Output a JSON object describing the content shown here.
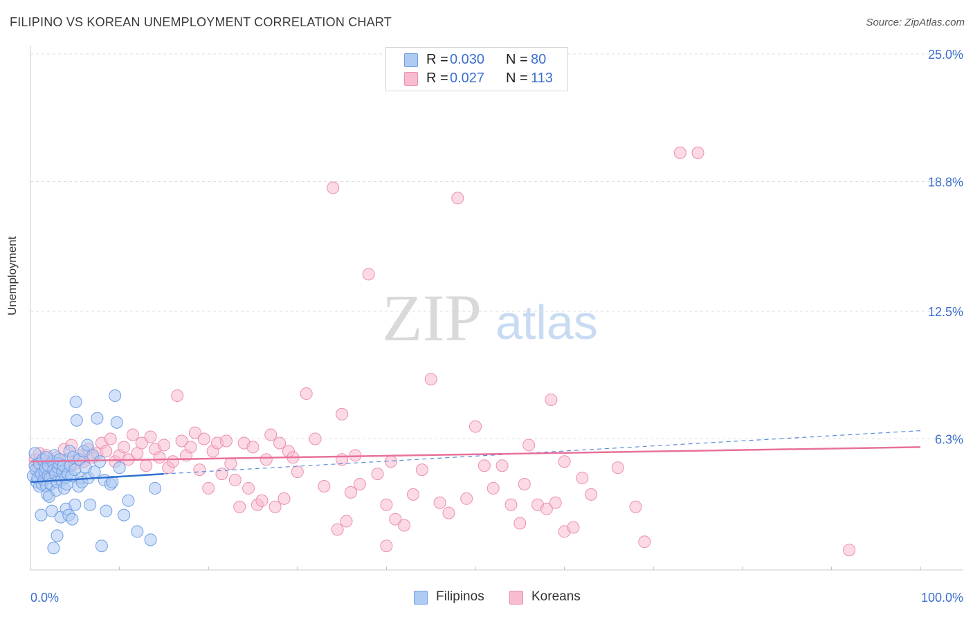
{
  "title": "FILIPINO VS KOREAN UNEMPLOYMENT CORRELATION CHART",
  "source": "Source: ZipAtlas.com",
  "watermark": {
    "part1": "ZIP",
    "part2": "atlas"
  },
  "legend_top": {
    "rows": [
      {
        "r_label": "R =",
        "r_value": "0.030",
        "n_label": "N =",
        "n_value": "80",
        "color": "#aecbf2"
      },
      {
        "r_label": "R =",
        "r_value": "0.027",
        "n_label": "N =",
        "n_value": "113",
        "color": "#f8bcd0"
      }
    ]
  },
  "legend_bottom": {
    "filipinos": "Filipinos",
    "koreans": "Koreans"
  },
  "colors": {
    "filipino_fill": "#aecbf2",
    "filipino_stroke": "#6f9ee6",
    "filipino_line": "#2f6fd0",
    "korean_fill": "#f8bcd0",
    "korean_stroke": "#ec8fae",
    "korean_line": "#e8709a",
    "axis_label": "#3b6fd0",
    "grid": "#dddddd"
  },
  "chart_data": {
    "type": "scatter",
    "title": "FILIPINO VS KOREAN UNEMPLOYMENT CORRELATION CHART",
    "xlabel": "",
    "ylabel": "Unemployment",
    "xlim": [
      0,
      100
    ],
    "ylim": [
      0,
      25.0
    ],
    "x_tick_labels": [
      "0.0%",
      "100.0%"
    ],
    "y_ticks": [
      6.3,
      12.5,
      18.8,
      25.0
    ],
    "y_tick_labels": [
      "6.3%",
      "12.5%",
      "18.8%",
      "25.0%"
    ],
    "series": [
      {
        "name": "Filipinos",
        "R": 0.03,
        "N": 80,
        "trend": {
          "x": [
            0,
            15
          ],
          "y": [
            4.2,
            4.6
          ]
        },
        "trend_dashed": {
          "x": [
            15,
            100
          ],
          "y": [
            4.6,
            6.7
          ]
        },
        "points": [
          [
            0.3,
            4.5
          ],
          [
            0.5,
            5.0
          ],
          [
            0.5,
            5.6
          ],
          [
            0.6,
            4.8
          ],
          [
            0.7,
            4.2
          ],
          [
            0.8,
            4.4
          ],
          [
            1.0,
            4.0
          ],
          [
            1.0,
            5.1
          ],
          [
            1.2,
            4.6
          ],
          [
            1.3,
            4.1
          ],
          [
            1.4,
            5.3
          ],
          [
            1.5,
            4.3
          ],
          [
            1.6,
            4.7
          ],
          [
            1.7,
            4.9
          ],
          [
            1.8,
            4.0
          ],
          [
            1.9,
            3.6
          ],
          [
            2.0,
            4.5
          ],
          [
            2.0,
            5.0
          ],
          [
            2.1,
            3.5
          ],
          [
            2.2,
            4.4
          ],
          [
            2.3,
            4.1
          ],
          [
            2.4,
            2.8
          ],
          [
            2.5,
            5.2
          ],
          [
            2.6,
            4.8
          ],
          [
            2.7,
            5.5
          ],
          [
            2.8,
            4.6
          ],
          [
            2.9,
            3.8
          ],
          [
            3.0,
            4.2
          ],
          [
            3.0,
            1.6
          ],
          [
            3.1,
            4.9
          ],
          [
            3.2,
            5.1
          ],
          [
            3.3,
            5.3
          ],
          [
            3.4,
            2.5
          ],
          [
            3.5,
            4.3
          ],
          [
            3.6,
            4.7
          ],
          [
            3.7,
            5.0
          ],
          [
            3.8,
            3.9
          ],
          [
            3.9,
            4.4
          ],
          [
            4.0,
            2.9
          ],
          [
            4.1,
            4.1
          ],
          [
            4.2,
            4.6
          ],
          [
            4.3,
            2.6
          ],
          [
            4.4,
            5.7
          ],
          [
            4.5,
            5.0
          ],
          [
            4.6,
            4.5
          ],
          [
            4.7,
            2.4
          ],
          [
            4.8,
            5.4
          ],
          [
            5.0,
            4.8
          ],
          [
            5.0,
            3.1
          ],
          [
            5.1,
            8.1
          ],
          [
            5.2,
            7.2
          ],
          [
            5.4,
            4.0
          ],
          [
            5.5,
            5.3
          ],
          [
            5.7,
            4.4
          ],
          [
            5.8,
            4.2
          ],
          [
            6.0,
            5.7
          ],
          [
            6.2,
            4.9
          ],
          [
            6.4,
            6.0
          ],
          [
            6.5,
            4.4
          ],
          [
            6.7,
            3.1
          ],
          [
            7.0,
            5.5
          ],
          [
            7.2,
            4.7
          ],
          [
            7.5,
            7.3
          ],
          [
            7.8,
            5.2
          ],
          [
            8.0,
            1.1
          ],
          [
            8.3,
            4.3
          ],
          [
            8.5,
            2.8
          ],
          [
            9.0,
            4.1
          ],
          [
            9.2,
            4.2
          ],
          [
            9.5,
            8.4
          ],
          [
            9.7,
            7.1
          ],
          [
            10.0,
            4.9
          ],
          [
            10.5,
            2.6
          ],
          [
            11.0,
            3.3
          ],
          [
            12.0,
            1.8
          ],
          [
            13.5,
            1.4
          ],
          [
            14.0,
            3.9
          ],
          [
            1.2,
            2.6
          ],
          [
            2.6,
            1.0
          ],
          [
            1.8,
            5.4
          ]
        ]
      },
      {
        "name": "Koreans",
        "R": 0.027,
        "N": 113,
        "trend": {
          "x": [
            0,
            100
          ],
          "y": [
            5.2,
            5.9
          ]
        },
        "points": [
          [
            0.5,
            5.3
          ],
          [
            0.8,
            4.8
          ],
          [
            1.0,
            5.6
          ],
          [
            1.3,
            4.5
          ],
          [
            1.5,
            5.1
          ],
          [
            1.8,
            5.5
          ],
          [
            2.0,
            4.9
          ],
          [
            2.3,
            5.2
          ],
          [
            2.6,
            4.7
          ],
          [
            3.0,
            5.4
          ],
          [
            3.4,
            5.0
          ],
          [
            3.8,
            5.8
          ],
          [
            4.2,
            5.3
          ],
          [
            4.6,
            6.0
          ],
          [
            5.0,
            5.1
          ],
          [
            5.5,
            5.5
          ],
          [
            6.0,
            5.2
          ],
          [
            6.5,
            5.8
          ],
          [
            7.0,
            5.4
          ],
          [
            7.5,
            5.6
          ],
          [
            8.0,
            6.1
          ],
          [
            8.5,
            5.7
          ],
          [
            9.0,
            6.3
          ],
          [
            9.5,
            5.2
          ],
          [
            10.0,
            5.5
          ],
          [
            10.5,
            5.9
          ],
          [
            11.0,
            5.3
          ],
          [
            11.5,
            6.5
          ],
          [
            12.0,
            5.6
          ],
          [
            12.5,
            6.1
          ],
          [
            13.0,
            5.0
          ],
          [
            13.5,
            6.4
          ],
          [
            14.0,
            5.8
          ],
          [
            14.5,
            5.4
          ],
          [
            15.0,
            6.0
          ],
          [
            15.5,
            4.9
          ],
          [
            16.0,
            5.2
          ],
          [
            16.5,
            8.4
          ],
          [
            17.0,
            6.2
          ],
          [
            17.5,
            5.5
          ],
          [
            18.0,
            5.9
          ],
          [
            18.5,
            6.6
          ],
          [
            19.0,
            4.8
          ],
          [
            19.5,
            6.3
          ],
          [
            20.0,
            3.9
          ],
          [
            20.5,
            5.7
          ],
          [
            21.0,
            6.1
          ],
          [
            21.5,
            4.6
          ],
          [
            22.0,
            6.2
          ],
          [
            22.5,
            5.1
          ],
          [
            23.0,
            4.3
          ],
          [
            23.5,
            3.0
          ],
          [
            24.0,
            6.1
          ],
          [
            24.5,
            3.9
          ],
          [
            25.0,
            5.9
          ],
          [
            25.5,
            3.1
          ],
          [
            26.0,
            3.3
          ],
          [
            26.5,
            5.3
          ],
          [
            27.0,
            6.5
          ],
          [
            27.5,
            3.0
          ],
          [
            28.0,
            6.1
          ],
          [
            28.5,
            3.4
          ],
          [
            29.0,
            5.7
          ],
          [
            29.5,
            5.4
          ],
          [
            30.0,
            4.7
          ],
          [
            31.0,
            8.5
          ],
          [
            32.0,
            6.3
          ],
          [
            33.0,
            4.0
          ],
          [
            34.0,
            18.5
          ],
          [
            34.5,
            1.9
          ],
          [
            35.0,
            5.3
          ],
          [
            35.5,
            2.3
          ],
          [
            36.0,
            3.7
          ],
          [
            36.5,
            5.5
          ],
          [
            37.0,
            4.1
          ],
          [
            38.0,
            14.3
          ],
          [
            39.0,
            4.6
          ],
          [
            40.0,
            3.1
          ],
          [
            40.5,
            5.2
          ],
          [
            41.0,
            2.4
          ],
          [
            42.0,
            2.1
          ],
          [
            43.0,
            3.6
          ],
          [
            44.0,
            4.8
          ],
          [
            45.0,
            9.2
          ],
          [
            46.0,
            3.2
          ],
          [
            47.0,
            2.7
          ],
          [
            48.0,
            18.0
          ],
          [
            49.0,
            3.4
          ],
          [
            50.0,
            6.9
          ],
          [
            51.0,
            5.0
          ],
          [
            52.0,
            3.9
          ],
          [
            53.0,
            5.0
          ],
          [
            54.0,
            3.1
          ],
          [
            55.0,
            2.2
          ],
          [
            55.5,
            4.1
          ],
          [
            56.0,
            6.0
          ],
          [
            57.0,
            3.1
          ],
          [
            58.0,
            2.9
          ],
          [
            58.5,
            8.2
          ],
          [
            59.0,
            3.2
          ],
          [
            60.0,
            1.8
          ],
          [
            61.0,
            2.0
          ],
          [
            62.0,
            4.4
          ],
          [
            63.0,
            3.6
          ],
          [
            66.0,
            4.9
          ],
          [
            69.0,
            1.3
          ],
          [
            73.0,
            20.2
          ],
          [
            75.0,
            20.2
          ],
          [
            92.0,
            0.9
          ],
          [
            40.0,
            1.1
          ],
          [
            60.0,
            5.2
          ],
          [
            68.0,
            3.0
          ],
          [
            35.0,
            7.5
          ]
        ]
      }
    ]
  }
}
